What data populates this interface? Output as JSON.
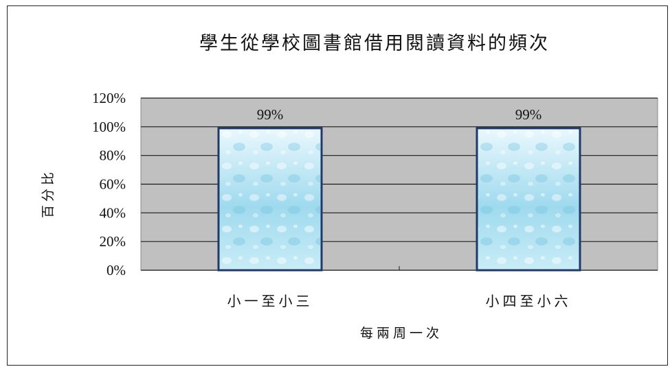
{
  "chart_data": {
    "type": "bar",
    "title": "學生從學校圖書館借用閱讀資料的頻次",
    "xlabel": "每兩周一次",
    "ylabel": "百分比",
    "categories": [
      "小一至小三",
      "小四至小六"
    ],
    "values": [
      99,
      99
    ],
    "data_labels": [
      "99%",
      "99%"
    ],
    "ylim": [
      0,
      120
    ],
    "yticks": [
      "0%",
      "20%",
      "40%",
      "60%",
      "80%",
      "100%",
      "120%"
    ],
    "grid": true,
    "legend": "none",
    "colors": {
      "plot_background": "#c0c0c0",
      "bar_fill_top": "#eaf8fd",
      "bar_fill_mid": "#9fdaee",
      "bar_fill_bottom": "#c9ecf7",
      "bar_border": "#1f3a68",
      "gridline": "#1a1a1a"
    }
  }
}
